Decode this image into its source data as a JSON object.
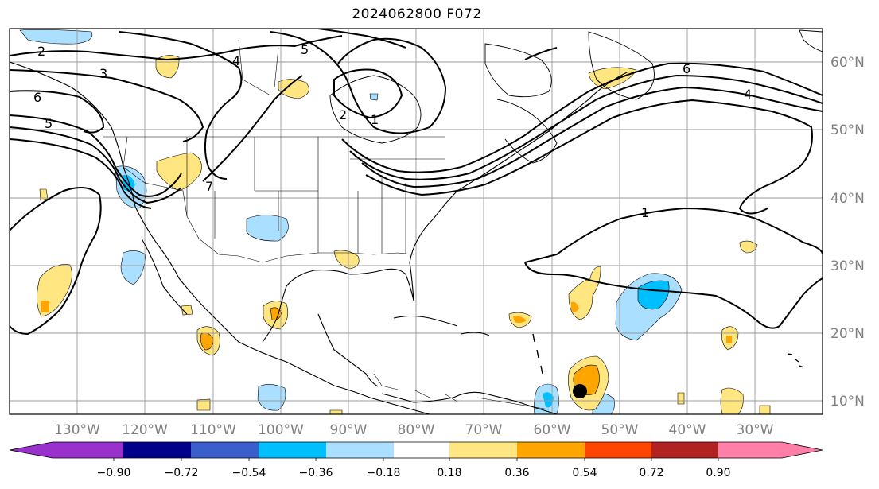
{
  "title": "2024062800 F072",
  "longitude_labels": [
    "130°W",
    "120°W",
    "110°W",
    "100°W",
    "90°W",
    "80°W",
    "70°W",
    "60°W",
    "50°W",
    "40°W",
    "30°W"
  ],
  "latitude_labels": [
    "60°N",
    "50°N",
    "40°N",
    "30°N",
    "20°N",
    "10°N"
  ],
  "colorbar": {
    "ticks": [
      "−0.90",
      "−0.72",
      "−0.54",
      "−0.36",
      "−0.18",
      "0.18",
      "0.36",
      "0.54",
      "0.72",
      "0.90"
    ],
    "colors": [
      "#9932cc",
      "#00008b",
      "#3a5fcd",
      "#00bfff",
      "#aadfff",
      "#ffffff",
      "#ffe680",
      "#ffa500",
      "#ff4500",
      "#b22222",
      "#ff7fa8"
    ]
  },
  "contour_labels": [
    "2",
    "3",
    "6",
    "5",
    "4",
    "5",
    "2",
    "1",
    "6",
    "4",
    "1",
    "7"
  ],
  "marker": "storm-position-dot"
}
